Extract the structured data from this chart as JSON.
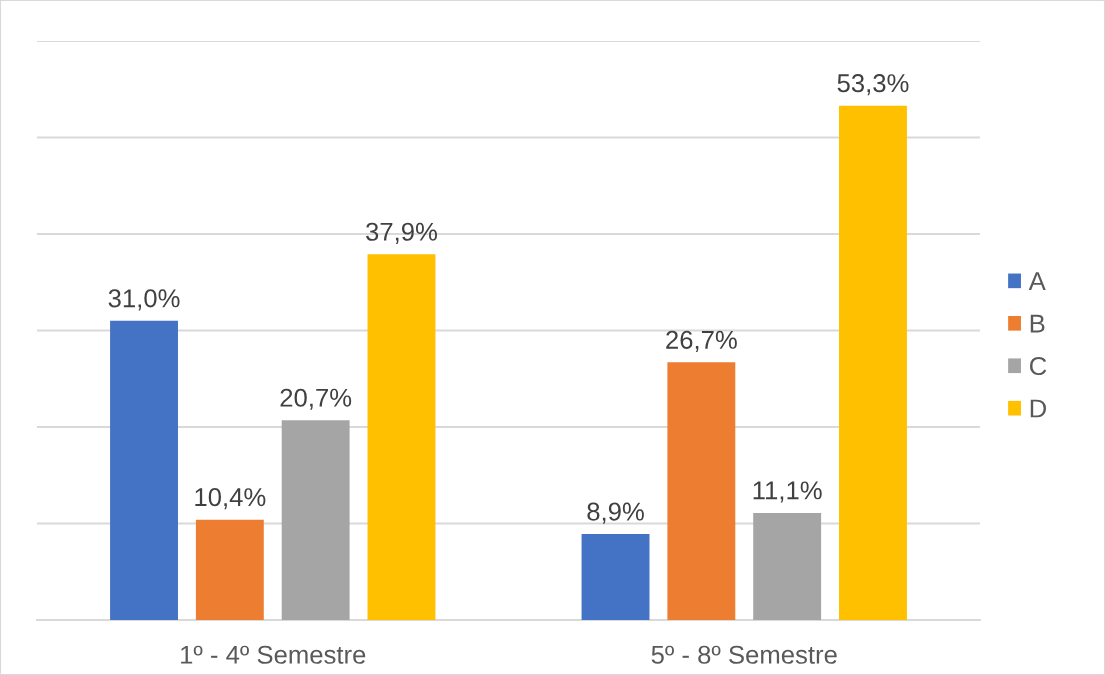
{
  "chart_data": {
    "type": "bar",
    "categories": [
      "1º - 4º Semestre",
      "5º - 8º Semestre"
    ],
    "series": [
      {
        "name": "A",
        "color": "#4472c4",
        "values": [
          31.0,
          8.9
        ],
        "value_labels": [
          "31,0%",
          "8,9%"
        ]
      },
      {
        "name": "B",
        "color": "#ed7d31",
        "values": [
          10.4,
          26.7
        ],
        "value_labels": [
          "10,4%",
          "26,7%"
        ]
      },
      {
        "name": "C",
        "color": "#a5a5a5",
        "values": [
          20.7,
          11.1
        ],
        "value_labels": [
          "20,7%",
          "11,1%"
        ]
      },
      {
        "name": "D",
        "color": "#ffc000",
        "values": [
          37.9,
          53.3
        ],
        "value_labels": [
          "37,9%",
          "53,3%"
        ]
      }
    ],
    "ylim": [
      0,
      60
    ],
    "yticks": [
      {
        "value": 0,
        "label": null
      },
      {
        "value": 10,
        "label": null
      },
      {
        "value": 20,
        "label": null
      },
      {
        "value": 30,
        "label": null
      },
      {
        "value": 40,
        "label": null
      },
      {
        "value": 50,
        "label": null
      },
      {
        "value": 60,
        "label": null
      }
    ],
    "grid": "y",
    "legend": "right",
    "tick_labels": "x"
  }
}
